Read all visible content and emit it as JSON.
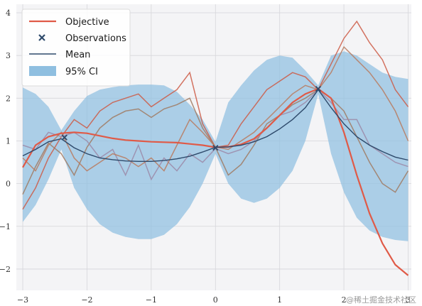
{
  "chart_data": {
    "type": "line",
    "xlim": [
      -3.1,
      3.05
    ],
    "ylim": [
      -2.5,
      4.2
    ],
    "xticks": [
      -3,
      -2,
      -1,
      0,
      1,
      2,
      3
    ],
    "xtick_labels": [
      "−3",
      "−2",
      "−1",
      "0",
      "1",
      "2",
      "3"
    ],
    "yticks": [
      -2,
      -1,
      0,
      1,
      2,
      3,
      4
    ],
    "ytick_labels": [
      "−2",
      "−1",
      "0",
      "1",
      "2",
      "3",
      "4"
    ],
    "grid": true,
    "legend_position": "top-left",
    "legend": [
      {
        "label": "Objective",
        "kind": "line",
        "color": "#e05a47"
      },
      {
        "label": "Observations",
        "kind": "marker",
        "color": "#2e4a6b"
      },
      {
        "label": "Mean",
        "kind": "line",
        "color": "#2e4a6b"
      },
      {
        "label": "95% CI",
        "kind": "patch",
        "color": "#8fbfe0"
      }
    ],
    "objective": {
      "name": "Objective",
      "x": [
        -3.0,
        -2.8,
        -2.6,
        -2.4,
        -2.2,
        -2.0,
        -1.8,
        -1.6,
        -1.4,
        -1.2,
        -1.0,
        -0.8,
        -0.6,
        -0.4,
        -0.2,
        0.0,
        0.2,
        0.4,
        0.6,
        0.8,
        1.0,
        1.2,
        1.4,
        1.6,
        1.8,
        2.0,
        2.2,
        2.4,
        2.6,
        2.8,
        3.0
      ],
      "y": [
        0.38,
        0.9,
        1.1,
        1.18,
        1.2,
        1.18,
        1.12,
        1.06,
        1.02,
        1.0,
        0.98,
        0.97,
        0.96,
        0.93,
        0.9,
        0.85,
        0.86,
        0.92,
        1.05,
        1.3,
        1.6,
        1.9,
        2.1,
        2.22,
        2.0,
        1.2,
        0.2,
        -0.7,
        -1.4,
        -1.9,
        -2.15
      ]
    },
    "mean": {
      "name": "Mean",
      "x": [
        -3.0,
        -2.8,
        -2.6,
        -2.4,
        -2.2,
        -2.0,
        -1.8,
        -1.6,
        -1.4,
        -1.2,
        -1.0,
        -0.8,
        -0.6,
        -0.4,
        -0.2,
        0.0,
        0.2,
        0.4,
        0.6,
        0.8,
        1.0,
        1.2,
        1.4,
        1.6,
        1.8,
        2.0,
        2.2,
        2.4,
        2.6,
        2.8,
        3.0
      ],
      "y": [
        0.65,
        0.8,
        0.98,
        1.05,
        0.84,
        0.7,
        0.6,
        0.56,
        0.53,
        0.52,
        0.52,
        0.54,
        0.58,
        0.64,
        0.74,
        0.85,
        0.86,
        0.9,
        0.98,
        1.1,
        1.28,
        1.5,
        1.78,
        2.2,
        1.78,
        1.4,
        1.1,
        0.9,
        0.75,
        0.62,
        0.55
      ]
    },
    "ci_lower": [
      -0.9,
      -0.5,
      0.1,
      0.8,
      -0.1,
      -0.6,
      -0.95,
      -1.15,
      -1.25,
      -1.3,
      -1.3,
      -1.2,
      -0.95,
      -0.55,
      0.0,
      0.7,
      0.0,
      -0.35,
      -0.45,
      -0.35,
      -0.1,
      0.3,
      1.0,
      2.1,
      0.7,
      -0.2,
      -0.8,
      -1.1,
      -1.25,
      -1.32,
      -1.35
    ],
    "ci_upper": [
      2.25,
      2.1,
      1.8,
      1.25,
      1.7,
      2.05,
      2.2,
      2.26,
      2.3,
      2.32,
      2.32,
      2.3,
      2.15,
      1.85,
      1.5,
      0.98,
      1.9,
      2.3,
      2.65,
      2.9,
      3.0,
      2.95,
      2.65,
      2.3,
      3.0,
      3.1,
      3.0,
      2.8,
      2.6,
      2.5,
      2.45
    ],
    "observations": {
      "name": "Observations",
      "x": [
        -2.35,
        0.0,
        1.6
      ],
      "y": [
        1.08,
        0.84,
        2.22
      ]
    },
    "samples_x": [
      -3.0,
      -2.8,
      -2.6,
      -2.4,
      -2.2,
      -2.0,
      -1.8,
      -1.6,
      -1.4,
      -1.2,
      -1.0,
      -0.8,
      -0.6,
      -0.4,
      -0.2,
      0.0,
      0.2,
      0.4,
      0.6,
      0.8,
      1.0,
      1.2,
      1.4,
      1.6,
      1.8,
      2.0,
      2.2,
      2.4,
      2.6,
      2.8,
      3.0
    ],
    "samples": [
      {
        "color": "#cc5a45",
        "values": [
          -0.6,
          -0.1,
          0.6,
          1.1,
          1.5,
          1.3,
          1.7,
          1.9,
          2.0,
          2.1,
          1.8,
          2.0,
          2.2,
          2.6,
          1.4,
          0.85,
          0.9,
          1.4,
          1.8,
          2.2,
          2.4,
          2.6,
          2.5,
          2.2,
          2.8,
          3.4,
          3.8,
          3.3,
          2.9,
          2.2,
          1.8
        ]
      },
      {
        "color": "#a07a62",
        "values": [
          -0.25,
          0.4,
          0.95,
          0.7,
          0.2,
          0.85,
          1.3,
          1.55,
          1.7,
          1.75,
          1.55,
          1.75,
          1.85,
          2.0,
          1.3,
          0.85,
          0.2,
          0.45,
          0.9,
          1.4,
          1.6,
          1.85,
          2.0,
          2.2,
          2.0,
          1.7,
          1.1,
          0.5,
          0.0,
          -0.2,
          0.3
        ]
      },
      {
        "color": "#9b8aa8",
        "values": [
          0.9,
          0.8,
          1.2,
          1.1,
          1.2,
          1.0,
          0.6,
          0.8,
          0.2,
          0.9,
          0.1,
          0.6,
          0.3,
          0.7,
          0.5,
          0.82,
          0.7,
          0.8,
          1.0,
          1.3,
          1.6,
          1.7,
          1.9,
          2.2,
          1.9,
          1.5,
          1.5,
          0.9,
          0.7,
          0.5,
          0.4
        ]
      },
      {
        "color": "#b87a5e",
        "values": [
          0.6,
          0.3,
          0.9,
          1.2,
          0.6,
          0.3,
          0.5,
          0.7,
          0.6,
          0.4,
          0.6,
          0.3,
          0.9,
          1.5,
          1.2,
          0.86,
          0.8,
          1.0,
          1.2,
          1.5,
          1.8,
          2.1,
          2.3,
          2.2,
          2.6,
          3.2,
          2.9,
          2.6,
          2.2,
          1.7,
          1.0
        ]
      }
    ]
  },
  "watermark": "@稀土掘金技术社区"
}
